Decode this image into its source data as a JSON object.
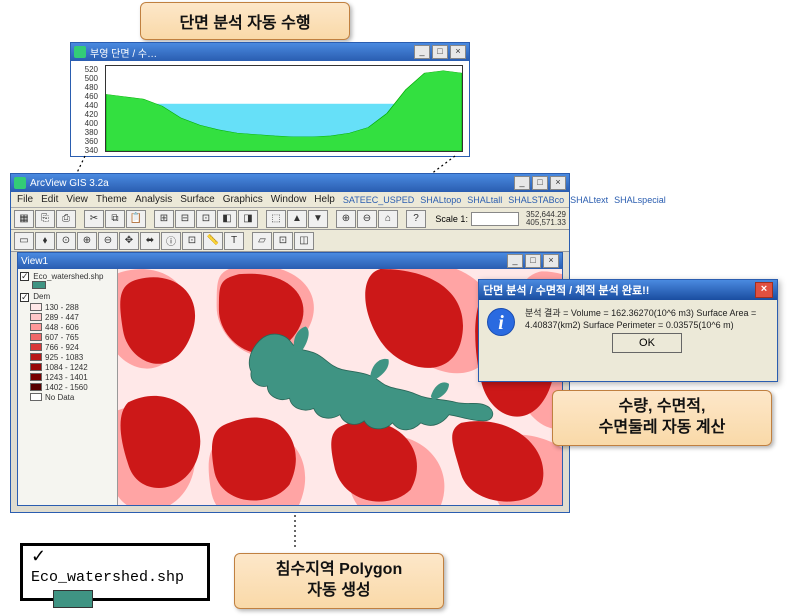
{
  "callouts": {
    "top": "단면 분석 자동 수행",
    "right_line1": "수량, 수면적,",
    "right_line2": "수면둘레 자동 계산",
    "bottom_line1": "침수지역 Polygon",
    "bottom_line2": "자동 생성"
  },
  "profile_window": {
    "title": "부영 단면 / 수…",
    "y_ticks": [
      "520",
      "500",
      "480",
      "460",
      "440",
      "420",
      "400",
      "380",
      "360",
      "340"
    ],
    "chart": {
      "type": "area",
      "ylim": [
        340,
        520
      ],
      "terrain_color": "#33e040",
      "water_color": "#66e0f8",
      "border_color": "#333333",
      "background": "#ffffff",
      "terrain": [
        460,
        455,
        450,
        435,
        410,
        395,
        385,
        378,
        375,
        372,
        370,
        370,
        372,
        378,
        390,
        420,
        470,
        505,
        510,
        505
      ],
      "water_level": 440
    }
  },
  "main_window": {
    "title": "ArcView GIS 3.2a",
    "menus": [
      "File",
      "Edit",
      "View",
      "Theme",
      "Analysis",
      "Surface",
      "Graphics",
      "Window",
      "Help"
    ],
    "menu_right": [
      "SATEEC_USPED",
      "SHALtopo",
      "SHALtall",
      "SHALSTABco",
      "SHALtext",
      "SHALspecial"
    ],
    "scale_label": "Scale 1:",
    "scale_value": "",
    "coords_line1": "352,644.29",
    "coords_line2": "405,571.33",
    "view1_title": "View1",
    "toc": {
      "layer1_name": "Eco_watershed.shp",
      "layer1_color": "#3f9483",
      "layer2_name": "Dem",
      "legend": [
        {
          "label": "130 - 288",
          "color": "#ffe8e8"
        },
        {
          "label": "289 - 447",
          "color": "#ffc8c8"
        },
        {
          "label": "448 - 606",
          "color": "#ff9898"
        },
        {
          "label": "607 - 765",
          "color": "#f06868"
        },
        {
          "label": "766 - 924",
          "color": "#d83838"
        },
        {
          "label": "925 - 1083",
          "color": "#b81818"
        },
        {
          "label": "1084 - 1242",
          "color": "#980808"
        },
        {
          "label": "1243 - 1401",
          "color": "#780000"
        },
        {
          "label": "1402 - 1560",
          "color": "#580000"
        },
        {
          "label": "No Data",
          "color": "#ffffff"
        }
      ]
    },
    "map": {
      "background_color": "#ffe8e8",
      "mid_color": "#ff9c9c",
      "dark_color": "#cc1818",
      "watershed_color": "#3f9483"
    }
  },
  "dialog": {
    "title": "단면 분석 / 수면적 / 체적 분석 완료!!",
    "body": "분석 결과 = Volume = 162.36270(10^6 m3) Surface Area = 4.40837(km2) Surface Perimeter = 0.03575(10^6 m)",
    "ok": "OK"
  },
  "legend_box": {
    "label": "Eco_watershed.shp",
    "color": "#3f9483"
  }
}
